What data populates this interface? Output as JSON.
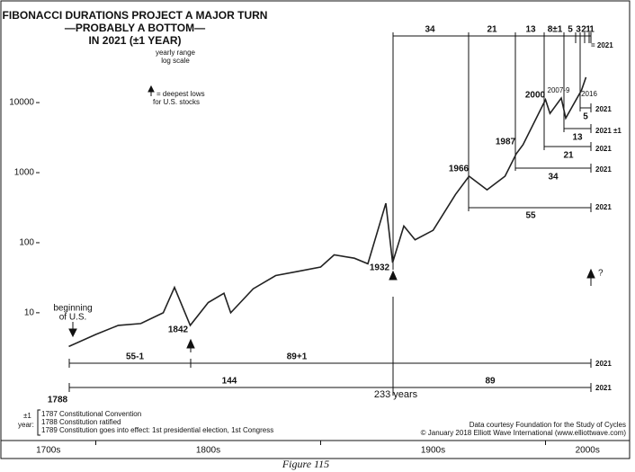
{
  "chart_data": {
    "type": "line",
    "title": [
      "FIBONACCI DURATIONS PROJECT A MAJOR TURN",
      "—PROBABLY A BOTTOM—",
      "IN 2021 (±1 YEAR)"
    ],
    "subtitle": [
      "yearly range",
      "log scale"
    ],
    "legend_note": [
      "= deepest lows",
      "for U.S. stocks"
    ],
    "x": [
      1788,
      1800,
      1810,
      1820,
      1830,
      1835,
      1842,
      1850,
      1857,
      1860,
      1870,
      1880,
      1890,
      1900,
      1906,
      1915,
      1921,
      1929,
      1932,
      1937,
      1942,
      1950,
      1960,
      1966,
      1974,
      1982,
      1987,
      1990,
      2000,
      2002,
      2007,
      2009,
      2016,
      2018
    ],
    "series": [
      {
        "color": "#222",
        "values": [
          3.3,
          4.9,
          6.6,
          7,
          10,
          23,
          6.6,
          14,
          19,
          10,
          22,
          34,
          39,
          45,
          67,
          60,
          50,
          365,
          52,
          173,
          110,
          150,
          490,
          890,
          570,
          890,
          1860,
          2500,
          11000,
          7000,
          11600,
          6000,
          15000,
          23000
        ]
      }
    ],
    "xlim": [
      1771,
      2037
    ],
    "xticks": [
      1800,
      1900,
      2000
    ],
    "xlabels": [
      "1700s",
      "1800s",
      "1900s",
      "2000s"
    ],
    "ylim": [
      0.15,
      230000
    ],
    "yticks": [
      10,
      100,
      1000,
      10000
    ],
    "log_scale": true,
    "annotations": [
      "beginning",
      "of U.S.",
      "1842",
      "1932",
      "1966",
      "1987",
      "2000",
      "2007-9",
      "2016",
      "?",
      "34",
      "21",
      "13",
      "8±1",
      "5",
      "3",
      "2",
      "1",
      "1",
      "= 2021",
      "5",
      "2021",
      "13",
      "2021 ±1",
      "21",
      "2021",
      "34",
      "2021",
      "55",
      "2021",
      "55-1",
      "89+1",
      "2021",
      "144",
      "89",
      "2021",
      "233 years",
      "1788"
    ],
    "footnote": [
      "±1",
      "year:",
      "1787 Constitutional Convention",
      "1788 Constitution ratified",
      "1789 Constitution goes into effect: 1st presidential election, 1st Congress"
    ],
    "credits": [
      "Data courtesy Foundation for the Study of Cycles",
      "© January 2018 Elliott Wave International (www.elliottwave.com)"
    ],
    "caption": "Figure 115"
  }
}
